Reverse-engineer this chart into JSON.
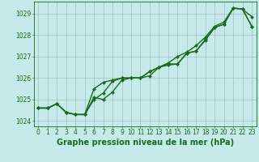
{
  "line1": [
    1024.6,
    1024.6,
    1024.8,
    1024.4,
    1024.3,
    1024.3,
    1025.5,
    1025.8,
    1025.9,
    1026.0,
    1026.0,
    1026.0,
    1026.3,
    1026.5,
    1026.7,
    1027.0,
    1027.2,
    1027.5,
    1027.9,
    1028.4,
    1028.6,
    1029.25,
    1029.2,
    1028.85
  ],
  "line2": [
    1024.6,
    1024.6,
    1024.8,
    1024.4,
    1024.3,
    1024.3,
    1025.0,
    1025.3,
    1025.85,
    1026.0,
    1026.0,
    1026.0,
    1026.3,
    1026.5,
    1026.65,
    1026.65,
    1027.15,
    1027.25,
    1027.75,
    1028.35,
    1028.5,
    1029.25,
    1029.2,
    1028.4
  ],
  "line3": [
    1024.6,
    1024.6,
    1024.8,
    1024.4,
    1024.3,
    1024.3,
    1025.1,
    1025.0,
    1025.35,
    1025.9,
    1026.0,
    1026.0,
    1026.1,
    1026.5,
    1026.6,
    1026.65,
    1027.15,
    1027.25,
    1027.8,
    1028.35,
    1028.5,
    1029.25,
    1029.2,
    1028.4
  ],
  "x": [
    0,
    1,
    2,
    3,
    4,
    5,
    6,
    7,
    8,
    9,
    10,
    11,
    12,
    13,
    14,
    15,
    16,
    17,
    18,
    19,
    20,
    21,
    22,
    23
  ],
  "line_color": "#1a6b1a",
  "marker": "D",
  "marker_size": 2.0,
  "bg_color": "#c5eaea",
  "grid_color": "#9dbfbf",
  "ylabel_values": [
    1024,
    1025,
    1026,
    1027,
    1028,
    1029
  ],
  "ylim": [
    1023.75,
    1029.55
  ],
  "xlim": [
    -0.5,
    23.5
  ],
  "xlabel": "Graphe pression niveau de la mer (hPa)",
  "xlabel_fontsize": 7,
  "tick_fontsize": 5.5,
  "line_width": 1.0
}
